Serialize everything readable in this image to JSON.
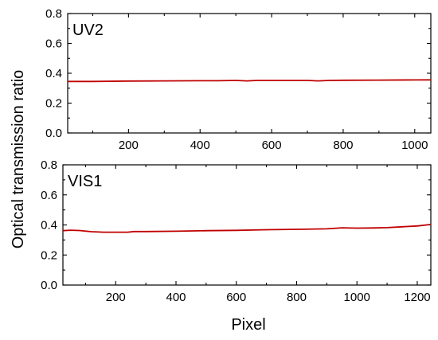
{
  "chart_data": [
    {
      "type": "line",
      "panel_label": "UV2",
      "xlim": [
        30,
        1045
      ],
      "ylim": [
        0.0,
        0.8
      ],
      "x_ticks": [
        200,
        400,
        600,
        800,
        1000
      ],
      "y_ticks": [
        0.0,
        0.2,
        0.4,
        0.6,
        0.8
      ],
      "y_tick_labels": [
        "0.0",
        "0.2",
        "0.4",
        "0.6",
        "0.8"
      ],
      "grid": false,
      "line_color": "#c00000",
      "series": [
        {
          "x": [
            30,
            100,
            200,
            300,
            400,
            450,
            500,
            530,
            560,
            600,
            700,
            730,
            760,
            800,
            900,
            1000,
            1045
          ],
          "values": [
            0.345,
            0.345,
            0.348,
            0.349,
            0.35,
            0.35,
            0.352,
            0.349,
            0.352,
            0.352,
            0.352,
            0.349,
            0.352,
            0.353,
            0.354,
            0.355,
            0.356
          ]
        }
      ]
    },
    {
      "type": "line",
      "panel_label": "VIS1",
      "xlim": [
        25,
        1245
      ],
      "ylim": [
        0.0,
        0.8
      ],
      "x_ticks": [
        200,
        400,
        600,
        800,
        1000,
        1200
      ],
      "y_ticks": [
        0.0,
        0.2,
        0.4,
        0.6,
        0.8
      ],
      "y_tick_labels": [
        "0.0",
        "0.2",
        "0.4",
        "0.6",
        "0.8"
      ],
      "grid": false,
      "line_color": "#c00000",
      "series": [
        {
          "x": [
            25,
            50,
            80,
            120,
            160,
            200,
            240,
            260,
            300,
            400,
            500,
            600,
            700,
            800,
            900,
            950,
            1000,
            1050,
            1100,
            1150,
            1200,
            1245
          ],
          "values": [
            0.362,
            0.365,
            0.363,
            0.355,
            0.352,
            0.352,
            0.352,
            0.356,
            0.356,
            0.358,
            0.362,
            0.364,
            0.368,
            0.371,
            0.374,
            0.381,
            0.379,
            0.38,
            0.382,
            0.388,
            0.393,
            0.403
          ]
        }
      ]
    }
  ],
  "shared": {
    "ylabel": "Optical transmission  ratio",
    "xlabel": "Pixel"
  }
}
